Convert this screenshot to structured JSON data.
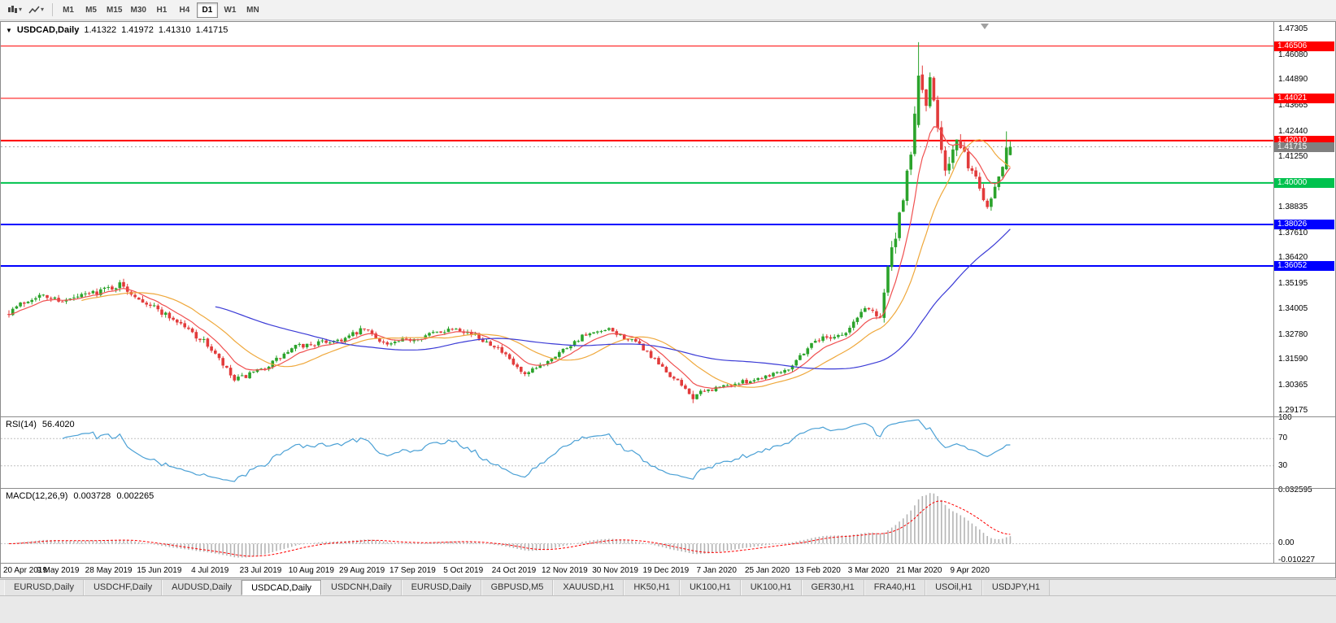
{
  "toolbar": {
    "icon_names": [
      "candlestick-chart-icon",
      "chevron-down-icon",
      "line-chart-icon"
    ],
    "timeframes": [
      "M1",
      "M5",
      "M15",
      "M30",
      "H1",
      "H4",
      "D1",
      "W1",
      "MN"
    ],
    "selected_timeframe": "D1"
  },
  "chart": {
    "title_symbol": "USDCAD,Daily",
    "ohlc": {
      "open": "1.41322",
      "high": "1.41972",
      "low": "1.41310",
      "close": "1.41715"
    }
  },
  "chart_data": {
    "type": "candlestick",
    "symbol": "USDCAD",
    "timeframe": "Daily",
    "current_ohlc": {
      "open": 1.41322,
      "high": 1.41972,
      "low": 1.4131,
      "close": 1.41715
    },
    "up_color": "#2ba32b",
    "down_color": "#e23b3b",
    "y_axis": {
      "price_max": 1.4765,
      "price_min": 1.289,
      "ticks": [
        "1.47305",
        "1.46080",
        "1.44890",
        "1.43665",
        "1.42440",
        "1.41250",
        "1.38835",
        "1.37610",
        "1.36420",
        "1.35195",
        "1.34005",
        "1.32780",
        "1.31590",
        "1.30365",
        "1.29175"
      ]
    },
    "x_axis": {
      "labels": [
        "20 Apr 2019",
        "9 May 2019",
        "28 May 2019",
        "15 Jun 2019",
        "4 Jul 2019",
        "23 Jul 2019",
        "10 Aug 2019",
        "29 Aug 2019",
        "17 Sep 2019",
        "5 Oct 2019",
        "24 Oct 2019",
        "12 Nov 2019",
        "30 Nov 2019",
        "19 Dec 2019",
        "7 Jan 2020",
        "25 Jan 2020",
        "13 Feb 2020",
        "3 Mar 2020",
        "21 Mar 2020",
        "9 Apr 2020"
      ]
    },
    "horizontal_lines": [
      {
        "price": 1.46506,
        "label": "1.46506",
        "color": "#ff0000",
        "thickness": 1
      },
      {
        "price": 1.44021,
        "label": "1.44021",
        "color": "#ff0000",
        "thickness": 1
      },
      {
        "price": 1.4201,
        "label": "1.42010",
        "color": "#ff0000",
        "thickness": 2
      },
      {
        "price": 1.4,
        "label": "1.40000",
        "color": "#00c24e",
        "thickness": 2
      },
      {
        "price": 1.38026,
        "label": "1.38026",
        "color": "#0000ff",
        "thickness": 2
      },
      {
        "price": 1.36052,
        "label": "1.36052",
        "color": "#0000ff",
        "thickness": 2
      }
    ],
    "current_price": {
      "value": 1.41715,
      "label": "1.41715",
      "color": "#808080"
    },
    "candle_count": 263,
    "price_anchors": [
      [
        0,
        1.339,
        0.003
      ],
      [
        7,
        1.3465,
        0.0026
      ],
      [
        15,
        1.344,
        0.0024
      ],
      [
        24,
        1.349,
        0.0026
      ],
      [
        29,
        1.3515,
        0.0028
      ],
      [
        37,
        1.342,
        0.0026
      ],
      [
        45,
        1.333,
        0.0024
      ],
      [
        52,
        1.323,
        0.0026
      ],
      [
        59,
        1.306,
        0.0024
      ],
      [
        66,
        1.311,
        0.002
      ],
      [
        75,
        1.322,
        0.0022
      ],
      [
        88,
        1.326,
        0.0022
      ],
      [
        93,
        1.3305,
        0.0022
      ],
      [
        99,
        1.323,
        0.002
      ],
      [
        108,
        1.327,
        0.002
      ],
      [
        117,
        1.3315,
        0.002
      ],
      [
        127,
        1.323,
        0.0022
      ],
      [
        135,
        1.308,
        0.0022
      ],
      [
        142,
        1.317,
        0.0018
      ],
      [
        150,
        1.327,
        0.0018
      ],
      [
        157,
        1.33,
        0.0018
      ],
      [
        165,
        1.323,
        0.0018
      ],
      [
        172,
        1.31,
        0.0018
      ],
      [
        179,
        1.299,
        0.0018
      ],
      [
        186,
        1.303,
        0.0016
      ],
      [
        195,
        1.3065,
        0.0016
      ],
      [
        204,
        1.312,
        0.0018
      ],
      [
        211,
        1.3255,
        0.0022
      ],
      [
        219,
        1.3285,
        0.0022
      ],
      [
        224,
        1.341,
        0.0026
      ],
      [
        228,
        1.337,
        0.0034
      ],
      [
        230,
        1.36,
        0.005
      ],
      [
        234,
        1.39,
        0.006
      ],
      [
        237,
        1.43,
        0.008
      ],
      [
        238,
        1.452,
        0.0085
      ],
      [
        240,
        1.438,
        0.0075
      ],
      [
        241,
        1.447,
        0.0065
      ],
      [
        245,
        1.408,
        0.006
      ],
      [
        248,
        1.419,
        0.005
      ],
      [
        251,
        1.409,
        0.0042
      ],
      [
        253,
        1.402,
        0.0036
      ],
      [
        256,
        1.389,
        0.0032
      ],
      [
        259,
        1.403,
        0.003
      ],
      [
        261,
        1.415,
        0.0024
      ],
      [
        262,
        1.41715,
        0.0012
      ]
    ],
    "forced_candles": [
      {
        "i": 179,
        "o": 1.2996,
        "h": 1.3012,
        "l": 1.2953,
        "c": 1.2972
      },
      {
        "i": 238,
        "o": 1.4275,
        "h": 1.4669,
        "l": 1.4263,
        "c": 1.451
      },
      {
        "i": 261,
        "o": 1.4065,
        "h": 1.4245,
        "l": 1.406,
        "c": 1.4168
      },
      {
        "i": 262,
        "o": 1.41322,
        "h": 1.41972,
        "l": 1.4131,
        "c": 1.41715
      }
    ],
    "moving_averages": [
      {
        "name": "fast-ma",
        "type": "ema",
        "period": 9,
        "color": "#f05050"
      },
      {
        "name": "mid-ma",
        "type": "sma",
        "period": 20,
        "color": "#efa83c"
      },
      {
        "name": "slow-ma",
        "type": "sma",
        "period": 55,
        "color": "#3b3bd6"
      }
    ],
    "indicators": {
      "rsi": {
        "label": "RSI(14)",
        "value": "56.4020",
        "period": 14,
        "levels": [
          70,
          30
        ],
        "axis_labels": [
          "100",
          "70",
          "30"
        ],
        "color": "#4aa0d5"
      },
      "macd": {
        "label": "MACD(12,26,9)",
        "value_main": "0.003728",
        "value_signal": "0.002265",
        "fast": 12,
        "slow": 26,
        "signal": 9,
        "axis_max": 0.032595,
        "axis_min": -0.010227,
        "axis_labels": [
          "0.032595",
          "0.00",
          "-0.010227"
        ],
        "hist_color": "#b4b4b4",
        "signal_color": "#ff0000"
      }
    }
  },
  "tabbar": {
    "tabs": [
      "EURUSD,Daily",
      "USDCHF,Daily",
      "AUDUSD,Daily",
      "USDCAD,Daily",
      "USDCNH,Daily",
      "EURUSD,Daily",
      "GBPUSD,M5",
      "XAUUSD,H1",
      "HK50,H1",
      "UK100,H1",
      "UK100,H1",
      "GER30,H1",
      "FRA40,H1",
      "USOil,H1",
      "USDJPY,H1"
    ],
    "active_index": 3
  }
}
